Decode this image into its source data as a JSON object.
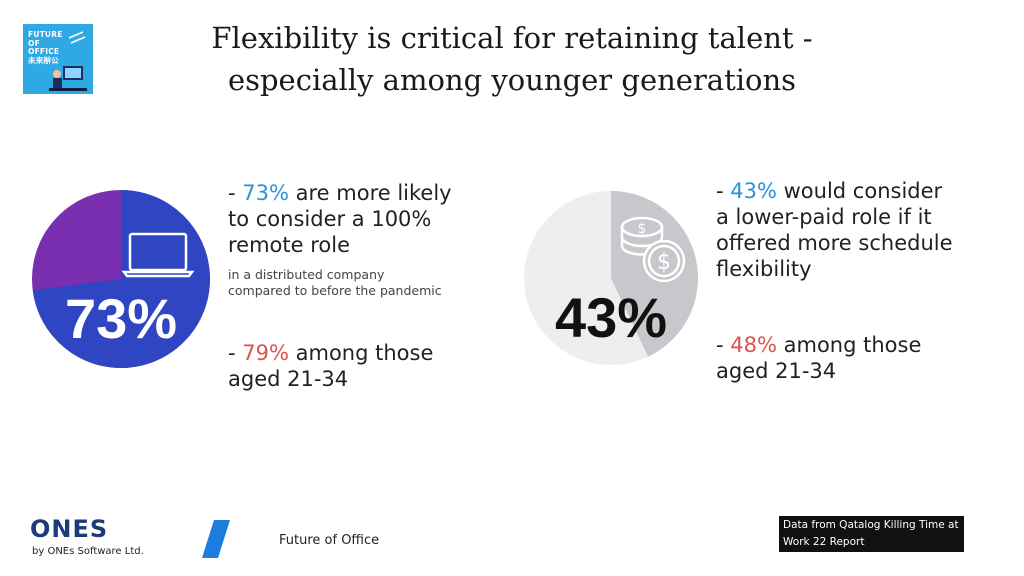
{
  "logo": {
    "lines": [
      "FUTURE",
      "OF",
      "OFFICE",
      "未来辦公"
    ],
    "background": "#2ea9e3"
  },
  "title": {
    "line1": "Flexibility is critical for retaining talent -",
    "line2": "especially among younger generations"
  },
  "left_stat": {
    "pie_value_label": "73%",
    "pie_fraction": 0.73,
    "pie_main_color": "#2f45c1",
    "pie_rest_color": "#7a2fb0",
    "icon": "laptop-icon",
    "line1_prefix": "- ",
    "line1_pct": "73%",
    "line1_rest": " are more likely",
    "line2": "to consider a 100%",
    "line3": "remote role",
    "sub1": "in a distributed company",
    "sub2": "compared to before the pandemic",
    "young_prefix": "- ",
    "young_pct": "79%",
    "young_rest": " among those",
    "young_line2": "aged 21-34"
  },
  "right_stat": {
    "pie_value_label": "43%",
    "pie_fraction": 0.43,
    "pie_main_color": "#c8c8cc",
    "pie_rest_color": "#eeeef1",
    "icon": "coins-icon",
    "line1_prefix": "- ",
    "line1_pct": "43%",
    "line1_rest": " would consider",
    "line2": "a lower-paid role if it",
    "line3": "offered more schedule",
    "line4": "flexibility",
    "young_prefix": "- ",
    "young_pct": "48%",
    "young_rest": " among those",
    "young_line2": "aged 21-34"
  },
  "footer": {
    "brand": "ONES",
    "brand_sub": "by ONEs Software Ltd.",
    "name": "Future of Office",
    "source_line1": "Data from Qatalog Killing Time at",
    "source_line2": "Work 22 Report"
  }
}
